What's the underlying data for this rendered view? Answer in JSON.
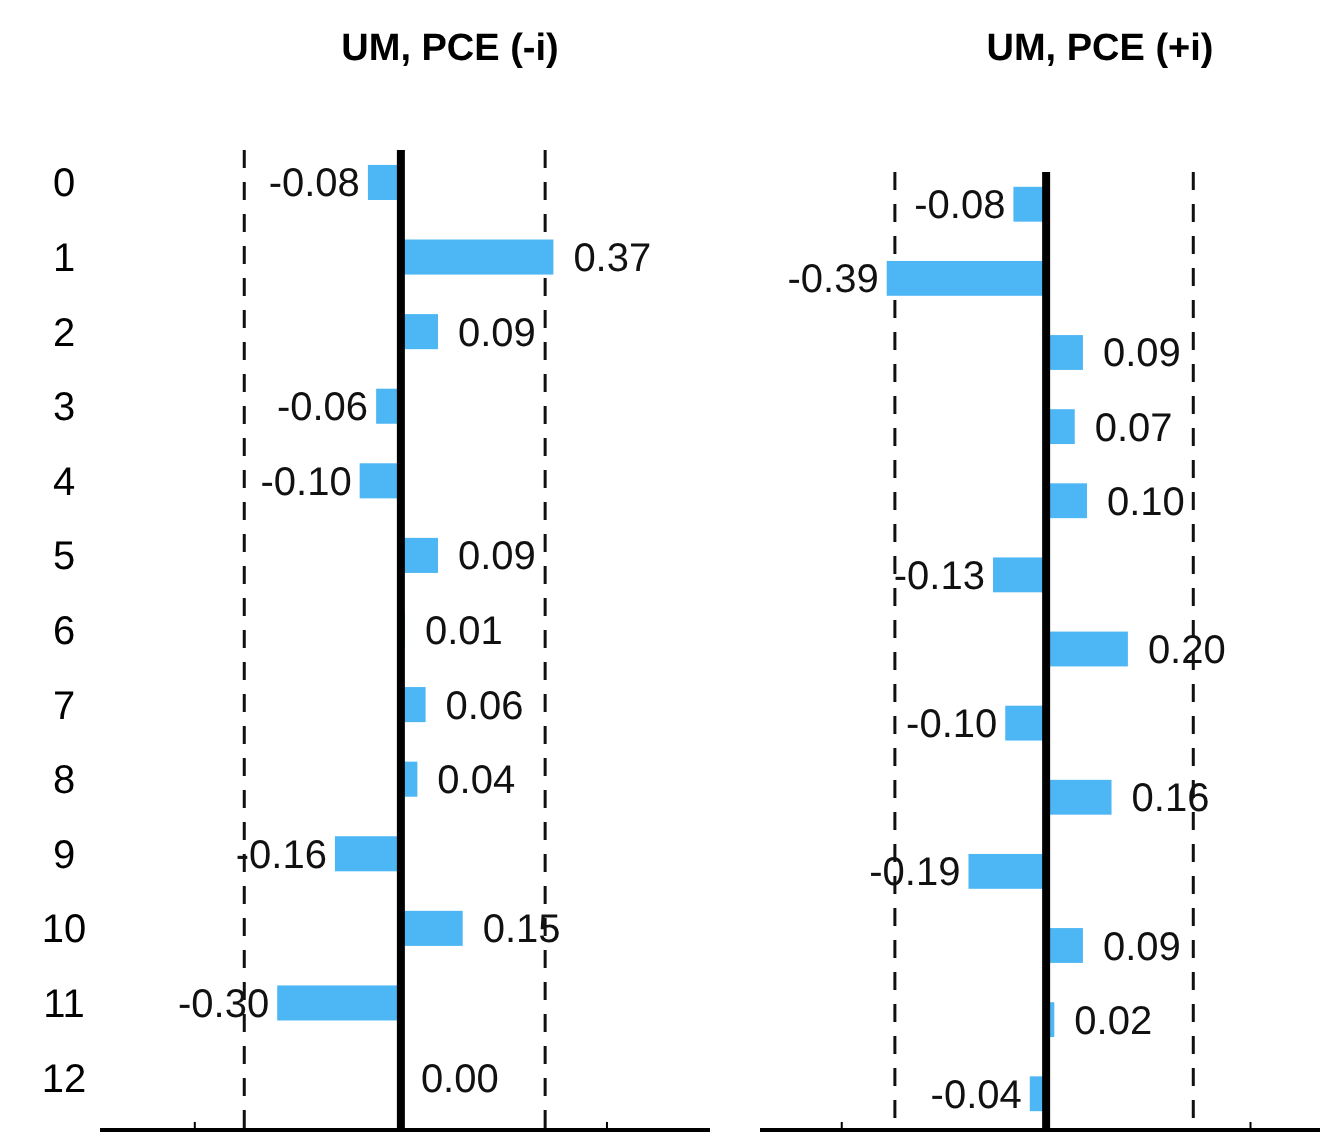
{
  "chart_data": [
    {
      "type": "bar",
      "orientation": "horizontal",
      "title": "UM, PCE (-i)",
      "categories": [
        "0",
        "1",
        "2",
        "3",
        "4",
        "5",
        "6",
        "7",
        "8",
        "9",
        "10",
        "11",
        "12"
      ],
      "color": "#4db6f4",
      "values": [
        -0.08,
        0.37,
        0.09,
        -0.06,
        -0.1,
        0.09,
        0.01,
        0.06,
        0.04,
        -0.16,
        0.15,
        -0.3,
        0
      ],
      "value_labels": [
        "-0.08",
        "0.37",
        "0.09",
        "-0.06",
        "-0.10",
        "0.09",
        "0.01",
        "0.06",
        "0.04",
        "-0.16",
        "0.15",
        "-0.30",
        "0.00"
      ],
      "xlim": [
        -0.73,
        0.75
      ],
      "xticks": [
        {
          "value": -0.5,
          "label": null
        },
        {
          "value": 0,
          "label": null
        },
        {
          "value": 0.5,
          "label": null
        }
      ],
      "tick_labels": "y",
      "ref_lines": [
        {
          "axis": "x",
          "value": -0.38,
          "line_style": "dashed"
        },
        {
          "axis": "x",
          "value": 0.35,
          "line_style": "dashed"
        }
      ]
    },
    {
      "type": "bar",
      "orientation": "horizontal",
      "title": "UM, PCE (+i)",
      "categories": [
        null,
        null,
        null,
        null,
        null,
        null,
        null,
        null,
        null,
        null,
        null,
        null,
        null
      ],
      "color": "#4db6f4",
      "values": [
        -0.08,
        -0.39,
        0.09,
        0.07,
        0.1,
        -0.13,
        0.2,
        -0.1,
        0.16,
        -0.19,
        0.09,
        0.02,
        -0.04
      ],
      "value_labels": [
        "-0.08",
        "-0.39",
        "0.09",
        "0.07",
        "0.10",
        "-0.13",
        "0.20",
        "-0.10",
        "0.16",
        "-0.19",
        "0.09",
        "0.02",
        "-0.04"
      ],
      "xlim": [
        -0.7,
        0.67
      ],
      "xticks": [
        {
          "value": -0.5,
          "label": null
        },
        {
          "value": 0,
          "label": null
        },
        {
          "value": 0.5,
          "label": null
        }
      ],
      "ref_lines": [
        {
          "axis": "x",
          "value": -0.37,
          "line_style": "dashed"
        },
        {
          "axis": "x",
          "value": 0.36,
          "line_style": "dashed"
        }
      ]
    }
  ]
}
